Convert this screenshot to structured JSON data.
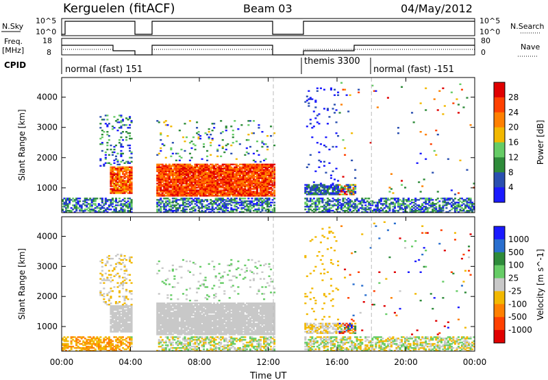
{
  "header": {
    "station": "Kerguelen (fitACF)",
    "beam": "Beam 03",
    "date": "04/May/2012"
  },
  "strip_labels": {
    "nsky": "N.Sky",
    "nsearch": "N.Search",
    "freq_line1": "Freq.",
    "freq_line2": "[MHz]",
    "nave": "Nave",
    "cpid": "CPID",
    "nsky_ticks": [
      "10^5",
      "10^0"
    ],
    "nsearch_ticks": [
      "10^5",
      "10^0"
    ],
    "freq_ticks": [
      "18",
      "8"
    ],
    "nave_ticks": [
      "80",
      "0"
    ]
  },
  "cpid_segments": [
    {
      "label": "normal (fast) 151",
      "start_h": 0
    },
    {
      "label": "themis 3300",
      "start_h": 14
    },
    {
      "label": "normal (fast) -151",
      "start_h": 18
    }
  ],
  "colors": {
    "power": [
      "#1a1aff",
      "#2a4fb0",
      "#2e8b3a",
      "#66cc66",
      "#f2b800",
      "#ff8000",
      "#ff4000",
      "#e00000"
    ],
    "velocity": [
      "#1a1aff",
      "#2a6fcf",
      "#2e8b3a",
      "#66cc66",
      "#c8c8c8",
      "#f2b800",
      "#ff8000",
      "#ff4000",
      "#e00000"
    ],
    "ground": "#808080"
  },
  "chart_data": [
    {
      "type": "heatmap",
      "name_panel": "power",
      "ylabel": "Slant Range [km]",
      "xlabel": "Time UT",
      "x_ticks": [
        "00:00",
        "04:00",
        "08:00",
        "12:00",
        "16:00",
        "20:00",
        "00:00"
      ],
      "xlim_hours": [
        0,
        24
      ],
      "y_ticks": [
        1000,
        2000,
        3000,
        4000
      ],
      "ylim": [
        180,
        4650
      ],
      "colorbar_label": "Power [dB]",
      "colorbar_ticks": [
        "28",
        "24",
        "20",
        "16",
        "12",
        "8",
        "4"
      ],
      "data_gaps_hours": [
        [
          4.1,
          5.4
        ],
        [
          12.3,
          14.0
        ]
      ]
    },
    {
      "type": "heatmap",
      "name_panel": "velocity",
      "ylabel": "Slant Range [km]",
      "xlabel": "Time UT",
      "x_ticks": [
        "00:00",
        "04:00",
        "08:00",
        "12:00",
        "16:00",
        "20:00",
        "00:00"
      ],
      "xlim_hours": [
        0,
        24
      ],
      "y_ticks": [
        1000,
        2000,
        3000,
        4000
      ],
      "ylim": [
        180,
        4650
      ],
      "colorbar_label": "Velocity [m s^-1]",
      "colorbar_ticks": [
        "1000",
        "500",
        "100",
        "25",
        "-25",
        "-100",
        "-500",
        "-1000"
      ],
      "data_gaps_hours": [
        [
          4.1,
          5.4
        ],
        [
          12.3,
          14.0
        ]
      ]
    }
  ]
}
